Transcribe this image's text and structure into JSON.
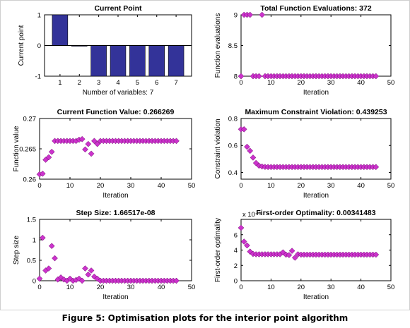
{
  "caption": "Figure 5: Optimisation plots for the interior point algorithm",
  "colors": {
    "bar": "#333399",
    "marker": "#cc33cc",
    "marker_edge": "#660066"
  },
  "chart_data": [
    {
      "id": "p1",
      "type": "bar",
      "title": "Current Point",
      "xlabel": "Number of variables: 7",
      "ylabel": "Current point",
      "categories": [
        "1",
        "2",
        "3",
        "4",
        "5",
        "6",
        "7"
      ],
      "values": [
        1,
        -0.02,
        -1,
        -1,
        -1,
        -1,
        -1
      ],
      "xlim": [
        0.2,
        7.8
      ],
      "ylim": [
        -1,
        1
      ],
      "xticks": [
        1,
        2,
        3,
        4,
        5,
        6,
        7
      ],
      "yticks": [
        -1,
        0,
        1
      ],
      "zero_line": true
    },
    {
      "id": "p2",
      "type": "scatter",
      "title": "Total Function Evaluations: 372",
      "xlabel": "Iteration",
      "ylabel": "Function evaluations",
      "x": [
        0,
        1,
        2,
        3,
        4,
        5,
        6,
        7,
        8,
        9,
        10,
        11,
        12,
        13,
        14,
        15,
        16,
        17,
        18,
        19,
        20,
        21,
        22,
        23,
        24,
        25,
        26,
        27,
        28,
        29,
        30,
        31,
        32,
        33,
        34,
        35,
        36,
        37,
        38,
        39,
        40,
        41,
        42,
        43,
        44,
        45
      ],
      "y": [
        8,
        9,
        9,
        9,
        8,
        8,
        8,
        9,
        8,
        8,
        8,
        8,
        8,
        8,
        8,
        8,
        8,
        8,
        8,
        8,
        8,
        8,
        8,
        8,
        8,
        8,
        8,
        8,
        8,
        8,
        8,
        8,
        8,
        8,
        8,
        8,
        8,
        8,
        8,
        8,
        8,
        8,
        8,
        8,
        8,
        8
      ],
      "xlim": [
        0,
        50
      ],
      "ylim": [
        8,
        9
      ],
      "xticks": [
        0,
        10,
        20,
        30,
        40,
        50
      ],
      "yticks": [
        8,
        8.5,
        9
      ]
    },
    {
      "id": "p3",
      "type": "scatter",
      "title": "Current Function Value: 0.266269",
      "xlabel": "Iteration",
      "ylabel": "Function value",
      "x": [
        0,
        1,
        2,
        3,
        4,
        5,
        6,
        7,
        8,
        9,
        10,
        11,
        12,
        13,
        14,
        15,
        16,
        17,
        18,
        19,
        20,
        21,
        22,
        23,
        24,
        25,
        26,
        27,
        28,
        29,
        30,
        31,
        32,
        33,
        34,
        35,
        36,
        37,
        38,
        39,
        40,
        41,
        42,
        43,
        44,
        45
      ],
      "y": [
        0.2608,
        0.2609,
        0.2632,
        0.2636,
        0.2645,
        0.2663,
        0.2663,
        0.2663,
        0.2663,
        0.2663,
        0.2663,
        0.2663,
        0.2663,
        0.2665,
        0.2666,
        0.2649,
        0.2658,
        0.2642,
        0.2663,
        0.2658,
        0.2663,
        0.2663,
        0.2663,
        0.2663,
        0.2663,
        0.2663,
        0.2663,
        0.2663,
        0.2663,
        0.2663,
        0.2663,
        0.2663,
        0.2663,
        0.2663,
        0.2663,
        0.2663,
        0.2663,
        0.2663,
        0.2663,
        0.2663,
        0.2663,
        0.2663,
        0.2663,
        0.2663,
        0.2663,
        0.2663
      ],
      "xlim": [
        0,
        50
      ],
      "ylim": [
        0.26,
        0.27
      ],
      "xticks": [
        0,
        10,
        20,
        30,
        40,
        50
      ],
      "yticks": [
        0.26,
        0.265,
        0.27
      ]
    },
    {
      "id": "p4",
      "type": "scatter",
      "title": "Maximum Constraint Violation: 0.439253",
      "xlabel": "Iteration",
      "ylabel": "Constraint violation",
      "x": [
        0,
        1,
        2,
        3,
        4,
        5,
        6,
        7,
        8,
        9,
        10,
        11,
        12,
        13,
        14,
        15,
        16,
        17,
        18,
        19,
        20,
        21,
        22,
        23,
        24,
        25,
        26,
        27,
        28,
        29,
        30,
        31,
        32,
        33,
        34,
        35,
        36,
        37,
        38,
        39,
        40,
        41,
        42,
        43,
        44,
        45
      ],
      "y": [
        0.72,
        0.72,
        0.59,
        0.56,
        0.51,
        0.47,
        0.45,
        0.444,
        0.441,
        0.44,
        0.44,
        0.44,
        0.44,
        0.44,
        0.44,
        0.44,
        0.44,
        0.44,
        0.44,
        0.44,
        0.44,
        0.44,
        0.44,
        0.44,
        0.44,
        0.44,
        0.44,
        0.44,
        0.44,
        0.44,
        0.44,
        0.44,
        0.44,
        0.44,
        0.44,
        0.44,
        0.44,
        0.44,
        0.44,
        0.44,
        0.44,
        0.44,
        0.44,
        0.44,
        0.44,
        0.44
      ],
      "xlim": [
        0,
        50
      ],
      "ylim": [
        0.35,
        0.8
      ],
      "xticks": [
        0,
        10,
        20,
        30,
        40,
        50
      ],
      "yticks": [
        0.4,
        0.6,
        0.8
      ]
    },
    {
      "id": "p5",
      "type": "scatter",
      "title": "Step Size: 1.66517e-08",
      "xlabel": "Iteration",
      "ylabel": "Step size",
      "x": [
        0,
        1,
        2,
        3,
        4,
        5,
        6,
        7,
        8,
        9,
        10,
        11,
        12,
        13,
        14,
        15,
        16,
        17,
        18,
        19,
        20,
        21,
        22,
        23,
        24,
        25,
        26,
        27,
        28,
        29,
        30,
        31,
        32,
        33,
        34,
        35,
        36,
        37,
        38,
        39,
        40,
        41,
        42,
        43,
        44,
        45
      ],
      "y": [
        0.05,
        1.05,
        0.25,
        0.3,
        0.85,
        0.55,
        0.03,
        0.08,
        0.03,
        0.0,
        0.05,
        0.0,
        0.02,
        0.05,
        0.0,
        0.3,
        0.15,
        0.25,
        0.1,
        0.05,
        0.0,
        0.0,
        0.0,
        0.0,
        0.0,
        0.0,
        0.0,
        0.0,
        0.0,
        0.0,
        0.0,
        0.0,
        0.0,
        0.0,
        0.0,
        0.0,
        0.0,
        0.0,
        0.0,
        0.0,
        0.0,
        0.0,
        0.0,
        0.0,
        0.0,
        0.0
      ],
      "xlim": [
        0,
        50
      ],
      "ylim": [
        0,
        1.5
      ],
      "xticks": [
        0,
        10,
        20,
        30,
        40,
        50
      ],
      "yticks": [
        0,
        0.5,
        1,
        1.5
      ]
    },
    {
      "id": "p6",
      "type": "scatter",
      "title": "First-order Optimality: 0.00341483",
      "exponent_label": "x 10⁻³",
      "xlabel": "Iteration",
      "ylabel": "First-order optimality",
      "x": [
        0,
        1,
        2,
        3,
        4,
        5,
        6,
        7,
        8,
        9,
        10,
        11,
        12,
        13,
        14,
        15,
        16,
        17,
        18,
        19,
        20,
        21,
        22,
        23,
        24,
        25,
        26,
        27,
        28,
        29,
        30,
        31,
        32,
        33,
        34,
        35,
        36,
        37,
        38,
        39,
        40,
        41,
        42,
        43,
        44,
        45
      ],
      "y": [
        6.9,
        5.1,
        4.6,
        3.8,
        3.5,
        3.45,
        3.45,
        3.45,
        3.45,
        3.45,
        3.45,
        3.45,
        3.45,
        3.45,
        3.7,
        3.4,
        3.35,
        3.9,
        3.0,
        3.45,
        3.4,
        3.4,
        3.4,
        3.4,
        3.4,
        3.4,
        3.4,
        3.4,
        3.4,
        3.4,
        3.4,
        3.4,
        3.4,
        3.4,
        3.4,
        3.4,
        3.4,
        3.4,
        3.4,
        3.4,
        3.4,
        3.4,
        3.4,
        3.4,
        3.4,
        3.4
      ],
      "xlim": [
        0,
        50
      ],
      "ylim": [
        0,
        8
      ],
      "xticks": [
        0,
        10,
        20,
        30,
        40,
        50
      ],
      "yticks": [
        0,
        2,
        4,
        6
      ]
    }
  ]
}
